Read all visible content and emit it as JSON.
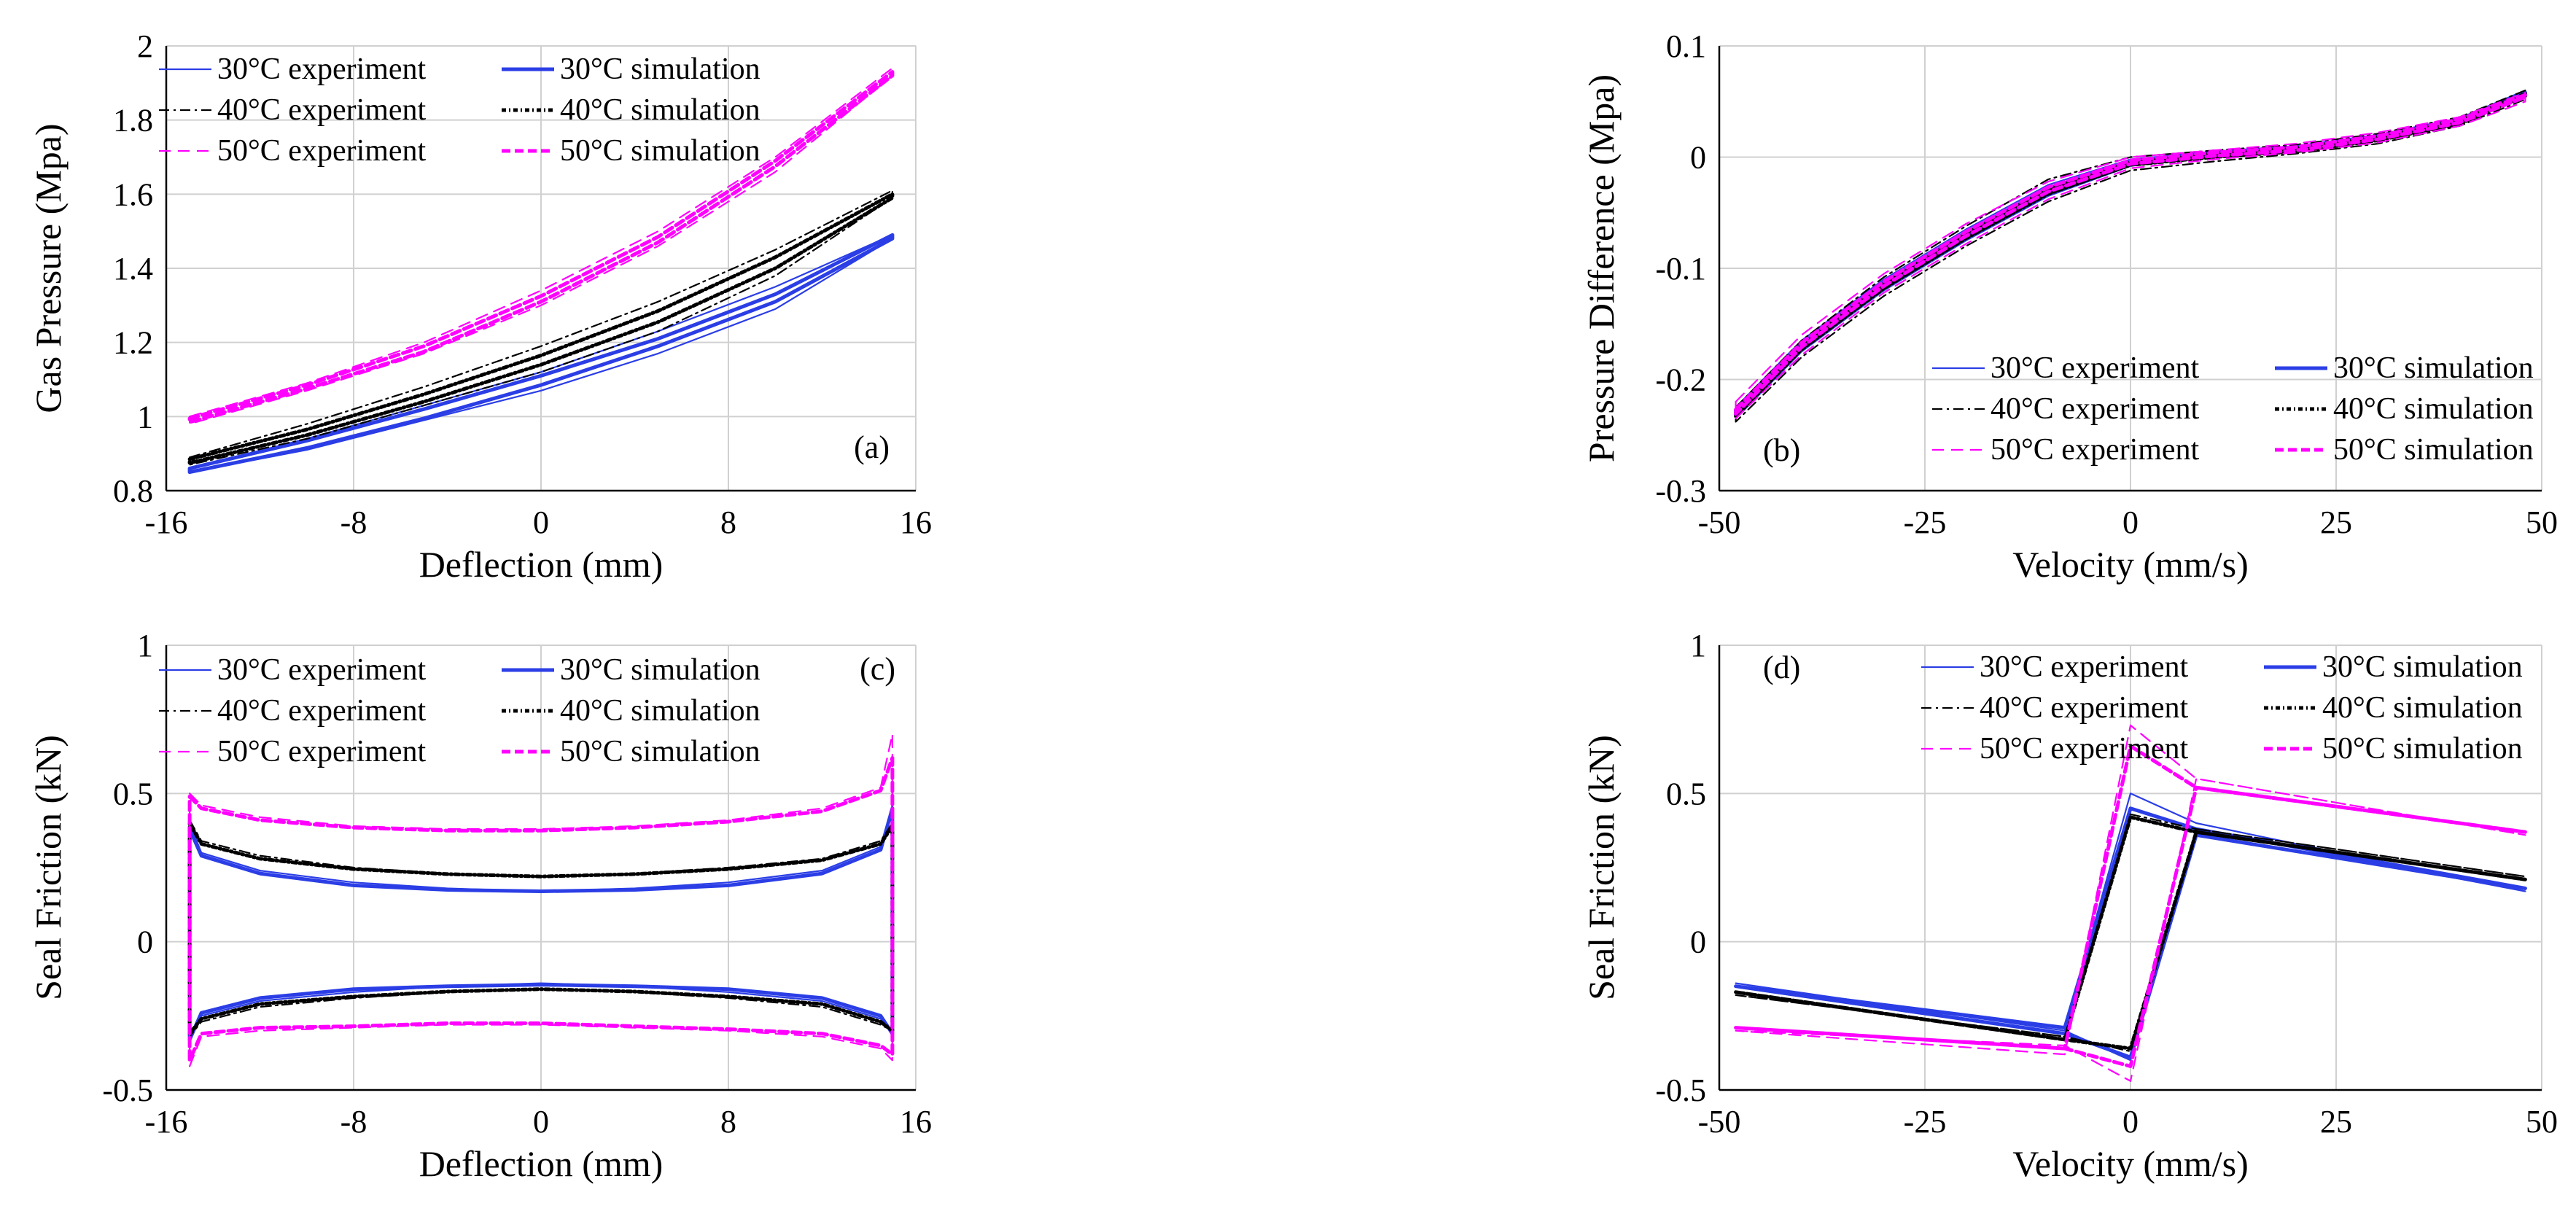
{
  "figure": {
    "panel_tags": [
      "(a)",
      "(b)",
      "(c)",
      "(d)"
    ]
  },
  "legend_labels": [
    "30°C experiment",
    "30°C simulation",
    "40°C experiment",
    "40°C simulation",
    "50°C experiment",
    "50°C simulation"
  ],
  "series_colors": {
    "30": "#2b3ee6",
    "40": "#000000",
    "50": "#ff00ff"
  },
  "chart_data": [
    {
      "id": "a",
      "tag": "(a)",
      "type": "line",
      "xlabel": "Deflection (mm)",
      "ylabel": "Gas Pressure (Mpa)",
      "xlim": [
        -16,
        16
      ],
      "ylim": [
        0.8,
        2
      ],
      "xticks": [
        "-16",
        "-8",
        "0",
        "8",
        "16"
      ],
      "yticks": [
        "0.8",
        "1",
        "1.2",
        "1.4",
        "1.6",
        "1.8",
        "2"
      ],
      "grid": true,
      "legend_position": "top-left",
      "series": [
        {
          "name": "30°C experiment",
          "temp": "30",
          "kind": "experiment",
          "x": [
            -15,
            -10,
            -5,
            0,
            5,
            10,
            15
          ],
          "upper": [
            0.86,
            0.94,
            1.03,
            1.12,
            1.23,
            1.35,
            1.49
          ],
          "lower": [
            0.85,
            0.91,
            0.99,
            1.07,
            1.17,
            1.29,
            1.48
          ]
        },
        {
          "name": "30°C simulation",
          "temp": "30",
          "kind": "simulation",
          "x": [
            -15,
            -10,
            -5,
            0,
            5,
            10,
            15
          ],
          "upper": [
            0.86,
            0.935,
            1.02,
            1.11,
            1.21,
            1.33,
            1.49
          ],
          "lower": [
            0.85,
            0.915,
            0.995,
            1.085,
            1.19,
            1.31,
            1.48
          ]
        },
        {
          "name": "40°C experiment",
          "temp": "40",
          "kind": "experiment",
          "x": [
            -15,
            -10,
            -5,
            0,
            5,
            10,
            15
          ],
          "upper": [
            0.89,
            0.98,
            1.08,
            1.19,
            1.31,
            1.45,
            1.61
          ],
          "lower": [
            0.87,
            0.94,
            1.03,
            1.12,
            1.23,
            1.38,
            1.59
          ]
        },
        {
          "name": "40°C simulation",
          "temp": "40",
          "kind": "simulation",
          "x": [
            -15,
            -10,
            -5,
            0,
            5,
            10,
            15
          ],
          "upper": [
            0.885,
            0.965,
            1.06,
            1.165,
            1.285,
            1.43,
            1.6
          ],
          "lower": [
            0.875,
            0.95,
            1.04,
            1.14,
            1.255,
            1.4,
            1.59
          ]
        },
        {
          "name": "50°C experiment",
          "temp": "50",
          "kind": "experiment",
          "x": [
            -15,
            -10,
            -5,
            0,
            5,
            10,
            15
          ],
          "upper": [
            1.0,
            1.09,
            1.2,
            1.34,
            1.5,
            1.7,
            1.94
          ],
          "lower": [
            0.98,
            1.07,
            1.17,
            1.3,
            1.46,
            1.66,
            1.92
          ]
        },
        {
          "name": "50°C simulation",
          "temp": "50",
          "kind": "simulation",
          "x": [
            -15,
            -10,
            -5,
            0,
            5,
            10,
            15
          ],
          "upper": [
            0.995,
            1.085,
            1.19,
            1.325,
            1.485,
            1.69,
            1.93
          ],
          "lower": [
            0.985,
            1.075,
            1.175,
            1.31,
            1.47,
            1.675,
            1.92
          ]
        }
      ]
    },
    {
      "id": "b",
      "tag": "(b)",
      "type": "line",
      "xlabel": "Velocity (mm/s)",
      "ylabel": "Pressure Difference (Mpa)",
      "xlim": [
        -50,
        50
      ],
      "ylim": [
        -0.3,
        0.1
      ],
      "xticks": [
        "-50",
        "-25",
        "0",
        "25",
        "50"
      ],
      "yticks": [
        "-0.3",
        "-0.2",
        "-0.1",
        "0",
        "0.1"
      ],
      "grid": true,
      "legend_position": "bottom-right",
      "series": [
        {
          "name": "30°C experiment",
          "temp": "30",
          "kind": "experiment",
          "x": [
            -48,
            -40,
            -30,
            -20,
            -10,
            0,
            10,
            20,
            30,
            40,
            48
          ],
          "upper": [
            -0.225,
            -0.165,
            -0.11,
            -0.065,
            -0.025,
            -0.002,
            0.005,
            0.01,
            0.02,
            0.035,
            0.06
          ],
          "lower": [
            -0.235,
            -0.175,
            -0.12,
            -0.075,
            -0.035,
            -0.008,
            0.0,
            0.005,
            0.015,
            0.03,
            0.055
          ]
        },
        {
          "name": "30°C simulation",
          "temp": "30",
          "kind": "simulation",
          "x": [
            -48,
            -40,
            -30,
            -20,
            -10,
            0,
            10,
            20,
            30,
            40,
            48
          ],
          "upper": [
            -0.228,
            -0.168,
            -0.113,
            -0.068,
            -0.028,
            -0.004,
            0.004,
            0.009,
            0.019,
            0.034,
            0.058
          ],
          "lower": [
            -0.232,
            -0.172,
            -0.117,
            -0.072,
            -0.032,
            -0.006,
            0.001,
            0.006,
            0.016,
            0.031,
            0.056
          ]
        },
        {
          "name": "40°C experiment",
          "temp": "40",
          "kind": "experiment",
          "x": [
            -48,
            -40,
            -30,
            -20,
            -10,
            0,
            10,
            20,
            30,
            40,
            48
          ],
          "upper": [
            -0.225,
            -0.165,
            -0.108,
            -0.062,
            -0.02,
            0.0,
            0.006,
            0.011,
            0.021,
            0.036,
            0.06
          ],
          "lower": [
            -0.238,
            -0.18,
            -0.125,
            -0.08,
            -0.04,
            -0.012,
            -0.004,
            0.003,
            0.012,
            0.028,
            0.052
          ]
        },
        {
          "name": "40°C simulation",
          "temp": "40",
          "kind": "simulation",
          "x": [
            -48,
            -40,
            -30,
            -20,
            -10,
            0,
            10,
            20,
            30,
            40,
            48
          ],
          "upper": [
            -0.229,
            -0.169,
            -0.114,
            -0.069,
            -0.029,
            -0.005,
            0.003,
            0.008,
            0.018,
            0.033,
            0.057
          ],
          "lower": [
            -0.233,
            -0.173,
            -0.118,
            -0.073,
            -0.033,
            -0.007,
            0.0,
            0.005,
            0.015,
            0.03,
            0.055
          ]
        },
        {
          "name": "50°C experiment",
          "temp": "50",
          "kind": "experiment",
          "x": [
            -48,
            -40,
            -30,
            -20,
            -10,
            0,
            10,
            20,
            30,
            40,
            48
          ],
          "upper": [
            -0.22,
            -0.16,
            -0.105,
            -0.06,
            -0.022,
            0.0,
            0.006,
            0.012,
            0.022,
            0.036,
            0.058
          ],
          "lower": [
            -0.235,
            -0.178,
            -0.122,
            -0.078,
            -0.038,
            -0.01,
            -0.002,
            0.004,
            0.013,
            0.028,
            0.05
          ]
        },
        {
          "name": "50°C simulation",
          "temp": "50",
          "kind": "simulation",
          "x": [
            -48,
            -40,
            -30,
            -20,
            -10,
            0,
            10,
            20,
            30,
            40,
            48
          ],
          "upper": [
            -0.227,
            -0.167,
            -0.112,
            -0.067,
            -0.027,
            -0.003,
            0.004,
            0.009,
            0.019,
            0.034,
            0.056
          ],
          "lower": [
            -0.231,
            -0.171,
            -0.116,
            -0.071,
            -0.031,
            -0.006,
            0.001,
            0.006,
            0.016,
            0.031,
            0.054
          ]
        }
      ]
    },
    {
      "id": "c",
      "tag": "(c)",
      "type": "line",
      "xlabel": "Deflection (mm)",
      "ylabel": "Seal Friction (kN)",
      "xlim": [
        -16,
        16
      ],
      "ylim": [
        -0.5,
        1
      ],
      "xticks": [
        "-16",
        "-8",
        "0",
        "8",
        "16"
      ],
      "yticks": [
        "-0.5",
        "0",
        "0.5",
        "1"
      ],
      "grid": true,
      "legend_position": "top-left",
      "series": [
        {
          "name": "30°C experiment",
          "temp": "30",
          "kind": "experiment",
          "x": [
            -15,
            -14.5,
            -12,
            -8,
            -4,
            0,
            4,
            8,
            12,
            14.5,
            15
          ],
          "upper": [
            0.4,
            0.3,
            0.24,
            0.2,
            0.18,
            0.17,
            0.18,
            0.2,
            0.24,
            0.32,
            0.46
          ],
          "lower": [
            -0.32,
            -0.25,
            -0.2,
            -0.17,
            -0.15,
            -0.14,
            -0.15,
            -0.17,
            -0.2,
            -0.26,
            -0.3
          ]
        },
        {
          "name": "30°C simulation",
          "temp": "30",
          "kind": "simulation",
          "x": [
            -15,
            -14.5,
            -12,
            -8,
            -4,
            0,
            4,
            8,
            12,
            14.5,
            15
          ],
          "upper": [
            0.38,
            0.29,
            0.23,
            0.19,
            0.175,
            0.17,
            0.175,
            0.19,
            0.23,
            0.31,
            0.45
          ],
          "lower": [
            -0.33,
            -0.24,
            -0.19,
            -0.16,
            -0.15,
            -0.145,
            -0.15,
            -0.16,
            -0.19,
            -0.25,
            -0.31
          ]
        },
        {
          "name": "40°C experiment",
          "temp": "40",
          "kind": "experiment",
          "x": [
            -15,
            -14.5,
            -12,
            -8,
            -4,
            0,
            4,
            8,
            12,
            14.5,
            15
          ],
          "upper": [
            0.41,
            0.34,
            0.29,
            0.25,
            0.23,
            0.22,
            0.23,
            0.25,
            0.28,
            0.34,
            0.4
          ],
          "lower": [
            -0.32,
            -0.27,
            -0.22,
            -0.19,
            -0.17,
            -0.16,
            -0.17,
            -0.19,
            -0.22,
            -0.28,
            -0.3
          ]
        },
        {
          "name": "40°C simulation",
          "temp": "40",
          "kind": "simulation",
          "x": [
            -15,
            -14.5,
            -12,
            -8,
            -4,
            0,
            4,
            8,
            12,
            14.5,
            15
          ],
          "upper": [
            0.4,
            0.33,
            0.28,
            0.245,
            0.228,
            0.22,
            0.228,
            0.245,
            0.275,
            0.33,
            0.39
          ],
          "lower": [
            -0.31,
            -0.26,
            -0.21,
            -0.185,
            -0.168,
            -0.16,
            -0.168,
            -0.185,
            -0.21,
            -0.27,
            -0.3
          ]
        },
        {
          "name": "50°C experiment",
          "temp": "50",
          "kind": "experiment",
          "x": [
            -15,
            -14.5,
            -12,
            -8,
            -4,
            0,
            4,
            8,
            12,
            14.5,
            15
          ],
          "upper": [
            0.5,
            0.46,
            0.42,
            0.39,
            0.38,
            0.38,
            0.39,
            0.41,
            0.45,
            0.52,
            0.7
          ],
          "lower": [
            -0.42,
            -0.32,
            -0.3,
            -0.29,
            -0.28,
            -0.28,
            -0.29,
            -0.3,
            -0.32,
            -0.36,
            -0.4
          ]
        },
        {
          "name": "50°C simulation",
          "temp": "50",
          "kind": "simulation",
          "x": [
            -15,
            -14.5,
            -12,
            -8,
            -4,
            0,
            4,
            8,
            12,
            14.5,
            15
          ],
          "upper": [
            0.49,
            0.45,
            0.41,
            0.385,
            0.375,
            0.375,
            0.385,
            0.405,
            0.44,
            0.51,
            0.62
          ],
          "lower": [
            -0.4,
            -0.31,
            -0.29,
            -0.285,
            -0.275,
            -0.275,
            -0.285,
            -0.295,
            -0.31,
            -0.35,
            -0.38
          ]
        }
      ]
    },
    {
      "id": "d",
      "tag": "(d)",
      "type": "line",
      "xlabel": "Velocity (mm/s)",
      "ylabel": "Seal Friction (kN)",
      "xlim": [
        -50,
        50
      ],
      "ylim": [
        -0.5,
        1
      ],
      "xticks": [
        "-50",
        "-25",
        "0",
        "25",
        "50"
      ],
      "yticks": [
        "-0.5",
        "0",
        "0.5",
        "1"
      ],
      "grid": true,
      "legend_position": "top-right",
      "series": [
        {
          "name": "30°C experiment",
          "temp": "30",
          "kind": "experiment",
          "x": [
            -48,
            -8,
            0,
            8,
            48,
            8,
            0,
            -8,
            -48
          ],
          "y": [
            -0.14,
            -0.3,
            -0.4,
            0.38,
            0.17,
            0.4,
            0.5,
            -0.3,
            -0.14
          ]
        },
        {
          "name": "30°C simulation",
          "temp": "30",
          "kind": "simulation",
          "x": [
            -48,
            -8,
            0,
            8,
            48,
            8,
            0,
            -8,
            -48
          ],
          "y": [
            -0.15,
            -0.31,
            -0.39,
            0.36,
            0.18,
            0.38,
            0.45,
            -0.29,
            -0.15
          ]
        },
        {
          "name": "40°C experiment",
          "temp": "40",
          "kind": "experiment",
          "x": [
            -48,
            -8,
            0,
            8,
            48,
            8,
            0,
            -8,
            -48
          ],
          "y": [
            -0.18,
            -0.32,
            -0.37,
            0.38,
            0.22,
            0.38,
            0.43,
            -0.32,
            -0.18
          ]
        },
        {
          "name": "40°C simulation",
          "temp": "40",
          "kind": "simulation",
          "x": [
            -48,
            -8,
            0,
            8,
            48,
            8,
            0,
            -8,
            -48
          ],
          "y": [
            -0.17,
            -0.33,
            -0.36,
            0.37,
            0.21,
            0.37,
            0.42,
            -0.33,
            -0.17
          ]
        },
        {
          "name": "50°C experiment",
          "temp": "50",
          "kind": "experiment",
          "x": [
            -48,
            -8,
            0,
            8,
            48,
            8,
            0,
            -8,
            -48
          ],
          "y": [
            -0.3,
            -0.35,
            -0.47,
            0.55,
            0.36,
            0.55,
            0.73,
            -0.38,
            -0.3
          ]
        },
        {
          "name": "50°C simulation",
          "temp": "50",
          "kind": "simulation",
          "x": [
            -48,
            -8,
            0,
            8,
            48,
            8,
            0,
            -8,
            -48
          ],
          "y": [
            -0.29,
            -0.36,
            -0.42,
            0.52,
            0.37,
            0.52,
            0.66,
            -0.36,
            -0.29
          ]
        }
      ]
    }
  ]
}
